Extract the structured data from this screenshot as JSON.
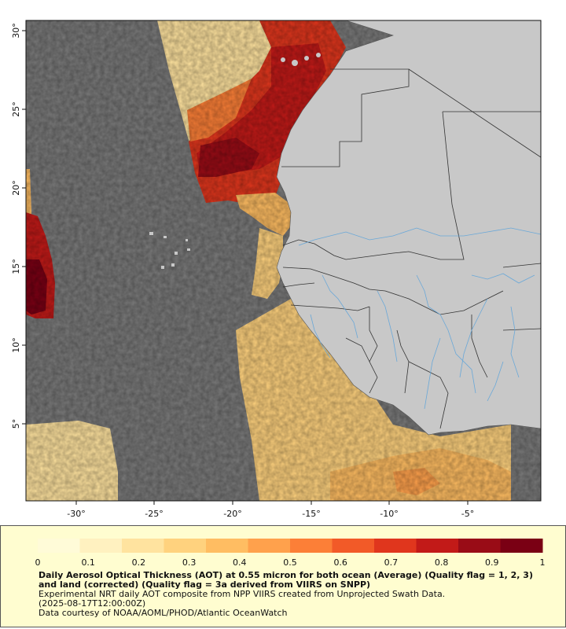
{
  "map": {
    "lat_ticks": [
      "30°",
      "25°",
      "20°",
      "15°",
      "10°",
      "5°"
    ],
    "lon_ticks": [
      "-30°",
      "-25°",
      "-20°",
      "-15°",
      "-10°",
      "-5°"
    ],
    "colors": {
      "ocean": "#7a7a7a",
      "land": "#c8c8c8",
      "border": "#333333",
      "river": "#6aa8d8"
    }
  },
  "colorbar": {
    "ticks": [
      "0",
      "0.1",
      "0.2",
      "0.3",
      "0.4",
      "0.5",
      "0.6",
      "0.7",
      "0.8",
      "0.9",
      "1"
    ],
    "colors": [
      "#fffbd8",
      "#fff1c0",
      "#ffe39f",
      "#ffd27e",
      "#ffbd62",
      "#ffa14c",
      "#fc7f37",
      "#f25a28",
      "#e0361d",
      "#c21a18",
      "#990c16",
      "#7a0014"
    ]
  },
  "caption": {
    "title": "Daily Aerosol Optical Thickness (AOT) at 0.55 micron for both ocean (Average) (Quality flag = 1, 2, 3) and land (corrected) (Quality flag = 3a derived from VIIRS on SNPP)",
    "line1": "Experimental NRT daily AOT composite from NPP VIIRS created from Unprojected Swath Data.",
    "line2": "(2025-08-17T12:00:00Z)",
    "line3": "Data courtesy of NOAA/AOML/PHOD/Atlantic OceanWatch"
  }
}
